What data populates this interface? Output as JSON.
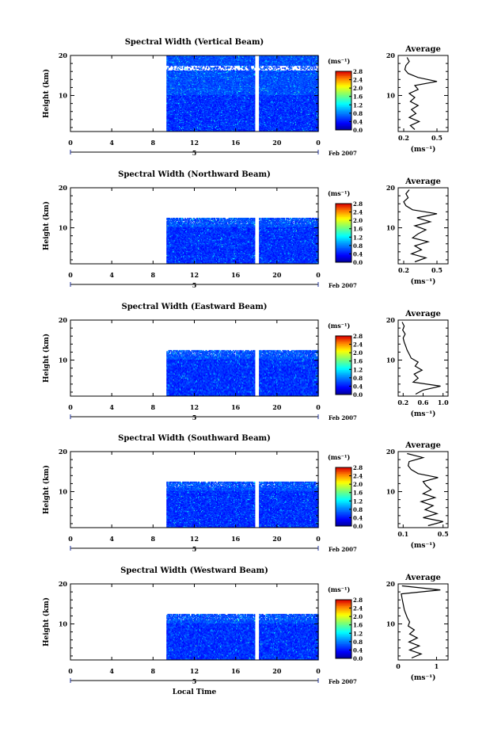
{
  "chart_data": [
    {
      "type": "heatmap",
      "title": "Spectral Width (Vertical Beam)",
      "ylabel": "Height (km)",
      "xticks": [
        "0",
        "4",
        "8",
        "12",
        "16",
        "20",
        "0"
      ],
      "yticks": [
        "20",
        "10"
      ],
      "xlim": [
        0,
        24
      ],
      "ylim": [
        1,
        20
      ],
      "data_start_hour": 9.3,
      "data_gap_hour": 18.0,
      "top_height_km": 20,
      "day_label": "5",
      "month_label": "Feb 2007",
      "colorbar": {
        "unit": "(ms⁻¹)",
        "ticks": [
          "2.8",
          "2.4",
          "2.0",
          "1.6",
          "1.2",
          "0.8",
          "0.4",
          "0.0"
        ],
        "range": [
          0,
          2.8
        ]
      },
      "average": {
        "title": "Average",
        "xticks": [
          "0.2",
          "0.5"
        ],
        "xlim": [
          0.15,
          0.6
        ],
        "yticks": [
          "20",
          "10"
        ],
        "xlabel": "(ms⁻¹)",
        "profile": [
          {
            "h": 1.5,
            "v": 0.3
          },
          {
            "h": 2.5,
            "v": 0.26
          },
          {
            "h": 3.5,
            "v": 0.34
          },
          {
            "h": 4.5,
            "v": 0.25
          },
          {
            "h": 5.5,
            "v": 0.31
          },
          {
            "h": 6.5,
            "v": 0.27
          },
          {
            "h": 7.5,
            "v": 0.33
          },
          {
            "h": 8.5,
            "v": 0.26
          },
          {
            "h": 9.5,
            "v": 0.3
          },
          {
            "h": 10.5,
            "v": 0.25
          },
          {
            "h": 11.5,
            "v": 0.33
          },
          {
            "h": 12.5,
            "v": 0.3
          },
          {
            "h": 13.5,
            "v": 0.5
          },
          {
            "h": 14.5,
            "v": 0.33
          },
          {
            "h": 15.5,
            "v": 0.24
          },
          {
            "h": 16.5,
            "v": 0.21
          },
          {
            "h": 17.5,
            "v": 0.22
          },
          {
            "h": 18.5,
            "v": 0.25
          },
          {
            "h": 19.5,
            "v": 0.23
          }
        ]
      }
    },
    {
      "type": "heatmap",
      "title": "Spectral Width (Northward Beam)",
      "ylabel": "Height (km)",
      "xticks": [
        "0",
        "4",
        "8",
        "12",
        "16",
        "20",
        "0"
      ],
      "yticks": [
        "20",
        "10"
      ],
      "xlim": [
        0,
        24
      ],
      "ylim": [
        1,
        20
      ],
      "data_start_hour": 9.3,
      "data_gap_hour": 18.0,
      "top_height_km": 12.5,
      "day_label": "5",
      "month_label": "Feb 2007",
      "colorbar": {
        "unit": "(ms⁻¹)",
        "ticks": [
          "2.8",
          "2.4",
          "2.0",
          "1.6",
          "1.2",
          "0.8",
          "0.4",
          "0.0"
        ],
        "range": [
          0,
          2.8
        ]
      },
      "average": {
        "title": "Average",
        "xticks": [
          "0.2",
          "0.5"
        ],
        "xlim": [
          0.15,
          0.6
        ],
        "yticks": [
          "20",
          "10"
        ],
        "xlabel": "(ms⁻¹)",
        "profile": [
          {
            "h": 1.5,
            "v": 0.3
          },
          {
            "h": 2.5,
            "v": 0.4
          },
          {
            "h": 3.5,
            "v": 0.27
          },
          {
            "h": 4.5,
            "v": 0.36
          },
          {
            "h": 5.5,
            "v": 0.3
          },
          {
            "h": 6.5,
            "v": 0.42
          },
          {
            "h": 7.5,
            "v": 0.28
          },
          {
            "h": 8.5,
            "v": 0.33
          },
          {
            "h": 9.5,
            "v": 0.4
          },
          {
            "h": 10.5,
            "v": 0.3
          },
          {
            "h": 11.5,
            "v": 0.44
          },
          {
            "h": 12.5,
            "v": 0.32
          },
          {
            "h": 13.5,
            "v": 0.5
          },
          {
            "h": 14.5,
            "v": 0.28
          },
          {
            "h": 15.5,
            "v": 0.22
          },
          {
            "h": 16.5,
            "v": 0.2
          },
          {
            "h": 17.5,
            "v": 0.24
          },
          {
            "h": 18.5,
            "v": 0.22
          },
          {
            "h": 19.5,
            "v": 0.25
          }
        ]
      }
    },
    {
      "type": "heatmap",
      "title": "Spectral Width (Eastward Beam)",
      "ylabel": "Height (km)",
      "xticks": [
        "0",
        "4",
        "8",
        "12",
        "16",
        "20",
        "0"
      ],
      "yticks": [
        "20",
        "10"
      ],
      "xlim": [
        0,
        24
      ],
      "ylim": [
        1,
        20
      ],
      "data_start_hour": 9.3,
      "data_gap_hour": 18.0,
      "top_height_km": 12.5,
      "day_label": "5",
      "month_label": "Feb 2007",
      "colorbar": {
        "unit": "(ms⁻¹)",
        "ticks": [
          "2.8",
          "2.4",
          "2.0",
          "1.6",
          "1.2",
          "0.8",
          "0.4",
          "0.0"
        ],
        "range": [
          0,
          2.8
        ]
      },
      "average": {
        "title": "Average",
        "xticks": [
          "0.2",
          "0.6",
          "1.0"
        ],
        "xlim": [
          0.1,
          1.1
        ],
        "yticks": [
          "20",
          "10"
        ],
        "xlabel": "(ms⁻¹)",
        "profile": [
          {
            "h": 1.5,
            "v": 0.45
          },
          {
            "h": 2.5,
            "v": 0.6
          },
          {
            "h": 3.5,
            "v": 0.95
          },
          {
            "h": 4.5,
            "v": 0.4
          },
          {
            "h": 5.5,
            "v": 0.5
          },
          {
            "h": 6.5,
            "v": 0.42
          },
          {
            "h": 7.5,
            "v": 0.58
          },
          {
            "h": 8.5,
            "v": 0.44
          },
          {
            "h": 9.5,
            "v": 0.5
          },
          {
            "h": 10.5,
            "v": 0.36
          },
          {
            "h": 11.5,
            "v": 0.32
          },
          {
            "h": 12.5,
            "v": 0.28
          },
          {
            "h": 13.5,
            "v": 0.25
          },
          {
            "h": 14.5,
            "v": 0.22
          },
          {
            "h": 15.5,
            "v": 0.2
          },
          {
            "h": 16.5,
            "v": 0.24
          },
          {
            "h": 17.5,
            "v": 0.19
          },
          {
            "h": 18.5,
            "v": 0.22
          },
          {
            "h": 19.5,
            "v": 0.18
          }
        ]
      }
    },
    {
      "type": "heatmap",
      "title": "Spectral Width (Southward Beam)",
      "ylabel": "Height (km)",
      "xticks": [
        "0",
        "4",
        "8",
        "12",
        "16",
        "20",
        "0"
      ],
      "yticks": [
        "20",
        "10"
      ],
      "xlim": [
        0,
        24
      ],
      "ylim": [
        1,
        20
      ],
      "data_start_hour": 9.3,
      "data_gap_hour": 18.0,
      "top_height_km": 12.5,
      "day_label": "5",
      "month_label": "Feb 2007",
      "colorbar": {
        "unit": "(ms⁻¹)",
        "ticks": [
          "2.8",
          "2.4",
          "2.0",
          "1.6",
          "1.2",
          "0.8",
          "0.4",
          "0.0"
        ],
        "range": [
          0,
          2.8
        ]
      },
      "average": {
        "title": "Average",
        "xticks": [
          "0.1",
          "0.5"
        ],
        "xlim": [
          0.05,
          0.55
        ],
        "yticks": [
          "20",
          "10"
        ],
        "xlabel": "(ms⁻¹)",
        "profile": [
          {
            "h": 1.5,
            "v": 0.35
          },
          {
            "h": 2.5,
            "v": 0.5
          },
          {
            "h": 3.5,
            "v": 0.3
          },
          {
            "h": 4.5,
            "v": 0.44
          },
          {
            "h": 5.5,
            "v": 0.32
          },
          {
            "h": 6.5,
            "v": 0.4
          },
          {
            "h": 7.5,
            "v": 0.28
          },
          {
            "h": 8.5,
            "v": 0.42
          },
          {
            "h": 9.5,
            "v": 0.3
          },
          {
            "h": 10.5,
            "v": 0.38
          },
          {
            "h": 11.5,
            "v": 0.33
          },
          {
            "h": 12.5,
            "v": 0.3
          },
          {
            "h": 13.5,
            "v": 0.45
          },
          {
            "h": 14.5,
            "v": 0.25
          },
          {
            "h": 15.5,
            "v": 0.18
          },
          {
            "h": 16.5,
            "v": 0.15
          },
          {
            "h": 17.5,
            "v": 0.16
          },
          {
            "h": 18.5,
            "v": 0.3
          },
          {
            "h": 19.5,
            "v": 0.14
          }
        ]
      }
    },
    {
      "type": "heatmap",
      "title": "Spectral Width (Westward Beam)",
      "ylabel": "Height (km)",
      "xlabel": "Local Time",
      "xticks": [
        "0",
        "4",
        "8",
        "12",
        "16",
        "20",
        "0"
      ],
      "yticks": [
        "20",
        "10"
      ],
      "xlim": [
        0,
        24
      ],
      "ylim": [
        1,
        20
      ],
      "data_start_hour": 9.3,
      "data_gap_hour": 18.0,
      "top_height_km": 12.5,
      "day_label": "5",
      "month_label": "Feb 2007",
      "colorbar": {
        "unit": "(ms⁻¹)",
        "ticks": [
          "2.8",
          "2.4",
          "2.0",
          "1.6",
          "1.2",
          "0.8",
          "0.4",
          "0.0"
        ],
        "range": [
          0,
          2.8
        ]
      },
      "average": {
        "title": "Average",
        "xticks": [
          "0",
          "1"
        ],
        "xlim": [
          0,
          1.3
        ],
        "yticks": [
          "20",
          "10"
        ],
        "xlabel": "(ms⁻¹)",
        "profile": [
          {
            "h": 1.5,
            "v": 0.35
          },
          {
            "h": 2.5,
            "v": 0.6
          },
          {
            "h": 3.5,
            "v": 0.3
          },
          {
            "h": 4.5,
            "v": 0.55
          },
          {
            "h": 5.5,
            "v": 0.28
          },
          {
            "h": 6.5,
            "v": 0.5
          },
          {
            "h": 7.5,
            "v": 0.3
          },
          {
            "h": 8.5,
            "v": 0.42
          },
          {
            "h": 9.5,
            "v": 0.26
          },
          {
            "h": 10.5,
            "v": 0.3
          },
          {
            "h": 11.5,
            "v": 0.24
          },
          {
            "h": 12.5,
            "v": 0.2
          },
          {
            "h": 13.5,
            "v": 0.16
          },
          {
            "h": 14.5,
            "v": 0.14
          },
          {
            "h": 15.5,
            "v": 0.12
          },
          {
            "h": 16.5,
            "v": 0.1
          },
          {
            "h": 17.5,
            "v": 0.08
          },
          {
            "h": 18.5,
            "v": 1.1
          },
          {
            "h": 19.5,
            "v": 0.1
          }
        ]
      }
    }
  ]
}
